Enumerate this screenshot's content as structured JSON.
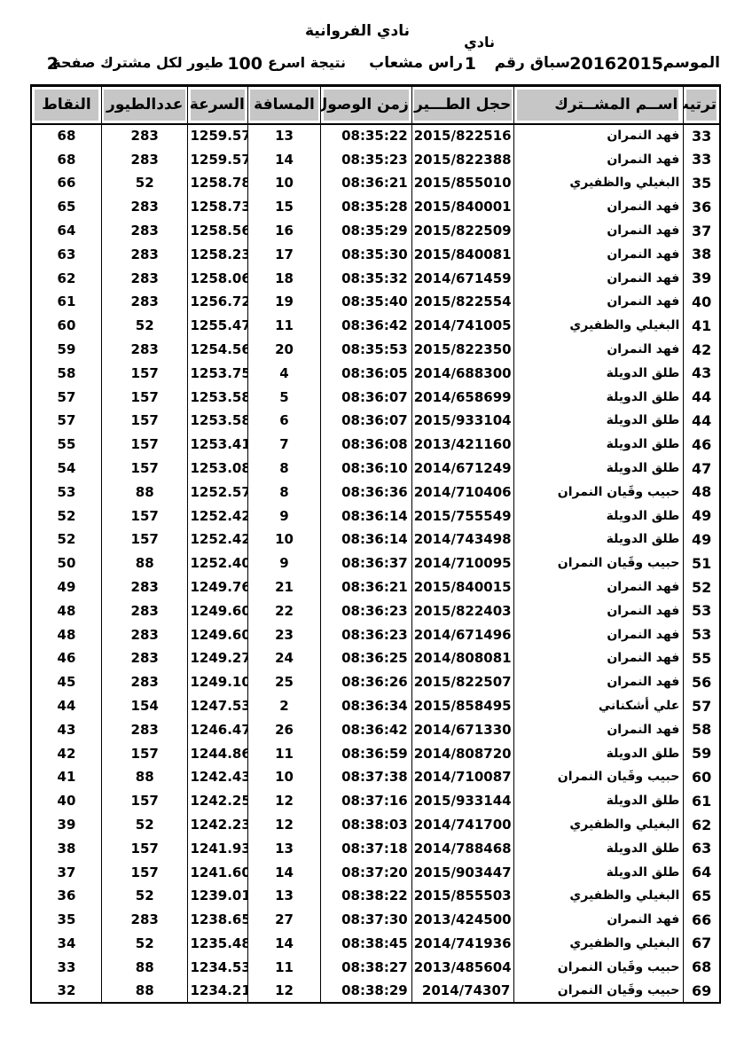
{
  "colors": {
    "header_bg": "#c6c6c6",
    "border": "#000000"
  },
  "header": {
    "club_label": "نادي",
    "club_name": "نادي الفروانية",
    "season_label": "الموسم",
    "season_value": "20162015",
    "race_label": "سباق رقم",
    "race_number": "1",
    "release_site": "راس مشعاب",
    "result_label": "نتيجة اسرع",
    "result_count": "100",
    "result_suffix": "طيور لكل مشترك صفحة",
    "page_number": "2"
  },
  "table": {
    "columns": [
      "rank",
      "name",
      "ring",
      "arrival",
      "distance",
      "speed",
      "birds",
      "points"
    ],
    "headers": {
      "rank": "ترتيب",
      "name": "اســم المشــترك",
      "ring": "حجل الطـــير",
      "arrival": "زمن الوصول",
      "distance": "المسافة",
      "speed": "السرعة",
      "birds": "عددالطيور",
      "points": "النقاط"
    },
    "rows": [
      {
        "rank": "33",
        "name": "فهد النمران",
        "ring": "2015/822516",
        "arrival": "08:35:22",
        "distance": "13",
        "speed": "1259.57",
        "birds": "283",
        "points": "68"
      },
      {
        "rank": "33",
        "name": "فهد النمران",
        "ring": "2015/822388",
        "arrival": "08:35:23",
        "distance": "14",
        "speed": "1259.57",
        "birds": "283",
        "points": "68"
      },
      {
        "rank": "35",
        "name": "البغيلي والظفيري",
        "ring": "2015/855010",
        "arrival": "08:36:21",
        "distance": "10",
        "speed": "1258.78",
        "birds": "52",
        "points": "66"
      },
      {
        "rank": "36",
        "name": "فهد النمران",
        "ring": "2015/840001",
        "arrival": "08:35:28",
        "distance": "15",
        "speed": "1258.73",
        "birds": "283",
        "points": "65"
      },
      {
        "rank": "37",
        "name": "فهد النمران",
        "ring": "2015/822509",
        "arrival": "08:35:29",
        "distance": "16",
        "speed": "1258.56",
        "birds": "283",
        "points": "64"
      },
      {
        "rank": "38",
        "name": "فهد النمران",
        "ring": "2015/840081",
        "arrival": "08:35:30",
        "distance": "17",
        "speed": "1258.23",
        "birds": "283",
        "points": "63"
      },
      {
        "rank": "39",
        "name": "فهد النمران",
        "ring": "2014/671459",
        "arrival": "08:35:32",
        "distance": "18",
        "speed": "1258.06",
        "birds": "283",
        "points": "62"
      },
      {
        "rank": "40",
        "name": "فهد النمران",
        "ring": "2015/822554",
        "arrival": "08:35:40",
        "distance": "19",
        "speed": "1256.72",
        "birds": "283",
        "points": "61"
      },
      {
        "rank": "41",
        "name": "البغيلي والظفيري",
        "ring": "2014/741005",
        "arrival": "08:36:42",
        "distance": "11",
        "speed": "1255.47",
        "birds": "52",
        "points": "60"
      },
      {
        "rank": "42",
        "name": "فهد النمران",
        "ring": "2015/822350",
        "arrival": "08:35:53",
        "distance": "20",
        "speed": "1254.56",
        "birds": "283",
        "points": "59"
      },
      {
        "rank": "43",
        "name": "طلق الدويلة",
        "ring": "2014/688300",
        "arrival": "08:36:05",
        "distance": "4",
        "speed": "1253.75",
        "birds": "157",
        "points": "58"
      },
      {
        "rank": "44",
        "name": "طلق الدويلة",
        "ring": "2014/658699",
        "arrival": "08:36:07",
        "distance": "5",
        "speed": "1253.58",
        "birds": "157",
        "points": "57"
      },
      {
        "rank": "44",
        "name": "طلق الدويلة",
        "ring": "2015/933104",
        "arrival": "08:36:07",
        "distance": "6",
        "speed": "1253.58",
        "birds": "157",
        "points": "57"
      },
      {
        "rank": "46",
        "name": "طلق الدويلة",
        "ring": "2013/421160",
        "arrival": "08:36:08",
        "distance": "7",
        "speed": "1253.41",
        "birds": "157",
        "points": "55"
      },
      {
        "rank": "47",
        "name": "طلق الدويلة",
        "ring": "2014/671249",
        "arrival": "08:36:10",
        "distance": "8",
        "speed": "1253.08",
        "birds": "157",
        "points": "54"
      },
      {
        "rank": "48",
        "name": "حبيب وقَيان النمران",
        "ring": "2014/710406",
        "arrival": "08:36:36",
        "distance": "8",
        "speed": "1252.57",
        "birds": "88",
        "points": "53"
      },
      {
        "rank": "49",
        "name": "طلق الدويلة",
        "ring": "2015/755549",
        "arrival": "08:36:14",
        "distance": "9",
        "speed": "1252.42",
        "birds": "157",
        "points": "52"
      },
      {
        "rank": "49",
        "name": "طلق الدويلة",
        "ring": "2014/743498",
        "arrival": "08:36:14",
        "distance": "10",
        "speed": "1252.42",
        "birds": "157",
        "points": "52"
      },
      {
        "rank": "51",
        "name": "حبيب وقَيان النمران",
        "ring": "2014/710095",
        "arrival": "08:36:37",
        "distance": "9",
        "speed": "1252.40",
        "birds": "88",
        "points": "50"
      },
      {
        "rank": "52",
        "name": "فهد النمران",
        "ring": "2015/840015",
        "arrival": "08:36:21",
        "distance": "21",
        "speed": "1249.76",
        "birds": "283",
        "points": "49"
      },
      {
        "rank": "53",
        "name": "فهد النمران",
        "ring": "2015/822403",
        "arrival": "08:36:23",
        "distance": "22",
        "speed": "1249.60",
        "birds": "283",
        "points": "48"
      },
      {
        "rank": "53",
        "name": "فهد النمران",
        "ring": "2014/671496",
        "arrival": "08:36:23",
        "distance": "23",
        "speed": "1249.60",
        "birds": "283",
        "points": "48"
      },
      {
        "rank": "55",
        "name": "فهد النمران",
        "ring": "2014/808081",
        "arrival": "08:36:25",
        "distance": "24",
        "speed": "1249.27",
        "birds": "283",
        "points": "46"
      },
      {
        "rank": "56",
        "name": "فهد النمران",
        "ring": "2015/822507",
        "arrival": "08:36:26",
        "distance": "25",
        "speed": "1249.10",
        "birds": "283",
        "points": "45"
      },
      {
        "rank": "57",
        "name": "علي أشكناني",
        "ring": "2015/858495",
        "arrival": "08:36:34",
        "distance": "2",
        "speed": "1247.53",
        "birds": "154",
        "points": "44"
      },
      {
        "rank": "58",
        "name": "فهد النمران",
        "ring": "2014/671330",
        "arrival": "08:36:42",
        "distance": "26",
        "speed": "1246.47",
        "birds": "283",
        "points": "43"
      },
      {
        "rank": "59",
        "name": "طلق الدويلة",
        "ring": "2014/808720",
        "arrival": "08:36:59",
        "distance": "11",
        "speed": "1244.86",
        "birds": "157",
        "points": "42"
      },
      {
        "rank": "60",
        "name": "حبيب وقَيان النمران",
        "ring": "2014/710087",
        "arrival": "08:37:38",
        "distance": "10",
        "speed": "1242.43",
        "birds": "88",
        "points": "41"
      },
      {
        "rank": "61",
        "name": "طلق الدويلة",
        "ring": "2015/933144",
        "arrival": "08:37:16",
        "distance": "12",
        "speed": "1242.25",
        "birds": "157",
        "points": "40"
      },
      {
        "rank": "62",
        "name": "البغيلي والظفيري",
        "ring": "2014/741700",
        "arrival": "08:38:03",
        "distance": "12",
        "speed": "1242.23",
        "birds": "52",
        "points": "39"
      },
      {
        "rank": "63",
        "name": "طلق الدويلة",
        "ring": "2014/788468",
        "arrival": "08:37:18",
        "distance": "13",
        "speed": "1241.93",
        "birds": "157",
        "points": "38"
      },
      {
        "rank": "64",
        "name": "طلق الدويلة",
        "ring": "2015/903447",
        "arrival": "08:37:20",
        "distance": "14",
        "speed": "1241.60",
        "birds": "157",
        "points": "37"
      },
      {
        "rank": "65",
        "name": "البغيلي والظفيري",
        "ring": "2015/855503",
        "arrival": "08:38:22",
        "distance": "13",
        "speed": "1239.01",
        "birds": "52",
        "points": "36"
      },
      {
        "rank": "66",
        "name": "فهد النمران",
        "ring": "2013/424500",
        "arrival": "08:37:30",
        "distance": "27",
        "speed": "1238.65",
        "birds": "283",
        "points": "35"
      },
      {
        "rank": "67",
        "name": "البغيلي والظفيري",
        "ring": "2014/741936",
        "arrival": "08:38:45",
        "distance": "14",
        "speed": "1235.48",
        "birds": "52",
        "points": "34"
      },
      {
        "rank": "68",
        "name": "حبيب وقَيان النمران",
        "ring": "2013/485604",
        "arrival": "08:38:27",
        "distance": "11",
        "speed": "1234.53",
        "birds": "88",
        "points": "33"
      },
      {
        "rank": "69",
        "name": "حبيب وقَيان النمران",
        "ring": "2014/74307",
        "arrival": "08:38:29",
        "distance": "12",
        "speed": "1234.21",
        "birds": "88",
        "points": "32"
      }
    ]
  }
}
